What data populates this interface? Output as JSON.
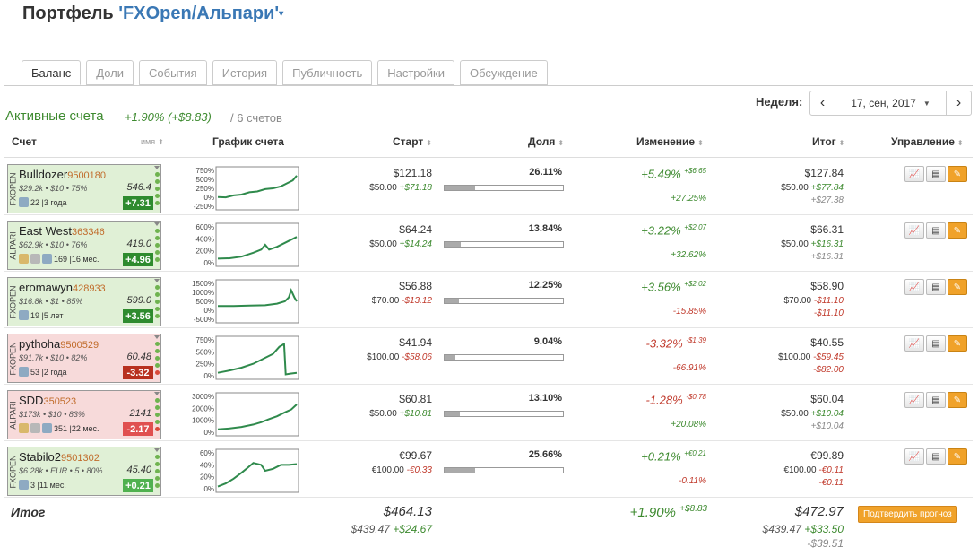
{
  "title": {
    "prefix": "Портфель",
    "name": "'FXOpen/Альпари'"
  },
  "tabs": [
    "Баланс",
    "Доли",
    "События",
    "История",
    "Публичность",
    "Настройки",
    "Обсуждение"
  ],
  "summary": {
    "label": "Активные счета",
    "change": "+1.90% (+$8.83)",
    "count": "/ 6 счетов"
  },
  "week": {
    "label": "Неделя:",
    "date": "17, сен, 2017"
  },
  "headers": {
    "account": "Счет",
    "name_sort": "имя",
    "chart": "График счета",
    "start": "Старт",
    "share": "Доля",
    "change": "Изменение",
    "total": "Итог",
    "manage": "Управление"
  },
  "colors": {
    "positive": "#3d8a2f",
    "negative": "#c0392b",
    "accent": "#f0a22a",
    "link": "#3a78b5"
  },
  "rows": [
    {
      "broker": "FXOPEN",
      "name": "Bulldozer",
      "id": "9500180",
      "stats": "$29.2k • $10 • 75%",
      "value": "546.4",
      "meta": "22 |3 года",
      "badge": "+7.31",
      "yticks": [
        "750%",
        "500%",
        "250%",
        "0%",
        "-250%"
      ],
      "start": "$121.18",
      "start_base": "$50.00",
      "start_delta": "+$71.18",
      "share": "26.11%",
      "share_frac": 0.2611,
      "change": "+5.49%",
      "change_abs": "+$6.65",
      "change_pct": "+27.25%",
      "total": "$127.84",
      "total_base": "$50.00",
      "total_delta": "+$77.84",
      "total_diff": "+$27.38",
      "sign": "pos"
    },
    {
      "broker": "ALPARI",
      "name": "East West",
      "id": "363346",
      "stats": "$62.9k • $10 • 76%",
      "value": "419.0",
      "meta": "169 |16 мес.",
      "badge": "+4.96",
      "yticks": [
        "600%",
        "400%",
        "200%",
        "0%"
      ],
      "start": "$64.24",
      "start_base": "$50.00",
      "start_delta": "+$14.24",
      "share": "13.84%",
      "share_frac": 0.1384,
      "change": "+3.22%",
      "change_abs": "+$2.07",
      "change_pct": "+32.62%",
      "total": "$66.31",
      "total_base": "$50.00",
      "total_delta": "+$16.31",
      "total_diff": "+$16.31",
      "sign": "pos"
    },
    {
      "broker": "FXOPEN",
      "name": "eromawyn",
      "id": "428933",
      "stats": "$16.8k • $1 • 85%",
      "value": "599.0",
      "meta": "19 |5 лет",
      "badge": "+3.56",
      "yticks": [
        "1500%",
        "1000%",
        "500%",
        "0%",
        "-500%"
      ],
      "start": "$56.88",
      "start_base": "$70.00",
      "start_delta": "-$13.12",
      "share": "12.25%",
      "share_frac": 0.1225,
      "change": "+3.56%",
      "change_abs": "+$2.02",
      "change_pct": "-15.85%",
      "total": "$58.90",
      "total_base": "$70.00",
      "total_delta": "-$11.10",
      "total_diff": "-$11.10",
      "sign": "pos"
    },
    {
      "broker": "FXOPEN",
      "name": "pythoha",
      "id": "9500529",
      "stats": "$91.7k • $10 • 82%",
      "value": "60.48",
      "meta": "53 |2 года",
      "badge": "-3.32",
      "yticks": [
        "750%",
        "500%",
        "250%",
        "0%"
      ],
      "start": "$41.94",
      "start_base": "$100.00",
      "start_delta": "-$58.06",
      "share": "9.04%",
      "share_frac": 0.0904,
      "change": "-3.32%",
      "change_abs": "-$1.39",
      "change_pct": "-66.91%",
      "total": "$40.55",
      "total_base": "$100.00",
      "total_delta": "-$59.45",
      "total_diff": "-$82.00",
      "sign": "neg"
    },
    {
      "broker": "ALPARI",
      "name": "SDD",
      "id": "350523",
      "stats": "$173k • $10 • 83%",
      "value": "2141",
      "meta": "351 |22 мес.",
      "badge": "-2.17",
      "yticks": [
        "3000%",
        "2000%",
        "1000%",
        "0%"
      ],
      "start": "$60.81",
      "start_base": "$50.00",
      "start_delta": "+$10.81",
      "share": "13.10%",
      "share_frac": 0.131,
      "change": "-1.28%",
      "change_abs": "-$0.78",
      "change_pct": "+20.08%",
      "total": "$60.04",
      "total_base": "$50.00",
      "total_delta": "+$10.04",
      "total_diff": "+$10.04",
      "sign": "neg"
    },
    {
      "broker": "FXOPEN",
      "name": "Stabilo2",
      "id": "9501302",
      "stats": "$6.28k • EUR • 5 • 80%",
      "value": "45.40",
      "meta": "3 |11 мес.",
      "badge": "+0.21",
      "yticks": [
        "60%",
        "40%",
        "20%",
        "0%"
      ],
      "start": "€99.67",
      "start_base": "€100.00",
      "start_delta": "-€0.33",
      "share": "25.66%",
      "share_frac": 0.2566,
      "change": "+0.21%",
      "change_abs": "+€0.21",
      "change_pct": "-0.11%",
      "total": "€99.89",
      "total_base": "€100.00",
      "total_delta": "-€0.11",
      "total_diff": "-€0.11",
      "sign": "pos"
    }
  ],
  "totals": {
    "label": "Итог",
    "start": "$464.13",
    "start_base": "$439.47",
    "start_delta": "+$24.67",
    "change": "+1.90%",
    "change_abs": "+$8.83",
    "total": "$472.97",
    "total_base": "$439.47",
    "total_delta": "+$33.50",
    "total_diff": "-$39.51",
    "confirm_button": "Подтвердить прогноз"
  }
}
